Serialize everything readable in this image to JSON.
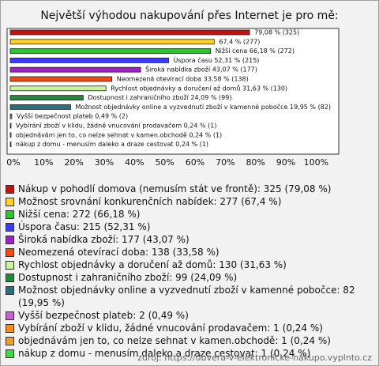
{
  "chart_data": {
    "type": "bar",
    "orientation": "horizontal",
    "title": "Největší výhodou nakupování přes Internet je pro mě:",
    "values": [
      79.08,
      67.4,
      66.18,
      52.31,
      43.07,
      33.58,
      31.63,
      24.09,
      19.95,
      0.49,
      0.24,
      0.24,
      0.24
    ],
    "value_labels": [
      "79,08 % (325)",
      "67,4 % (277)",
      "Nižší cena 66,18 % (272)",
      "Úspora času 52,31 % (215)",
      "Široká nabídka zboží 43,07 % (177)",
      "Neomezená otevírací doba 33,58 % (138)",
      "Rychlost objednávky a doručení až domů 31,63 % (130)",
      "Dostupnost i zahraničního zboží 24,09 % (99)",
      "Možnost objednávky online a vyzvednutí zboží v kamenné pobočce 19,95 % (82)",
      "Vyšší bezpečnost plateb 0,49 % (2)",
      "Vybírání zboží v klidu, žádné vnucování prodavačem 0,24 % (1)",
      "objednávám jen to, co nelze sehnat v kamen.obchodě 0,24 % (1)",
      "nákup z domu - menusím daleko a draze cestovat 0,24 % (1)"
    ],
    "colors": [
      "#c41010",
      "#ffd21f",
      "#2fc42f",
      "#3a3aff",
      "#a020c8",
      "#f24a10",
      "#c8f59a",
      "#1f8a3a",
      "#2a6e80",
      "#c860d0",
      "#ff8c10",
      "#e8a030",
      "#44d844"
    ],
    "legend": [
      "Nákup v pohodlí domova (nemusím stát ve frontě): 325 (79,08 %)",
      "Možnost srovnání konkurenčních nabídek: 277 (67,4 %)",
      "Nižší cena: 272 (66,18 %)",
      "Úspora času: 215 (52,31 %)",
      "Široká nabídka zboží: 177 (43,07 %)",
      "Neomezená otevírací doba: 138 (33,58 %)",
      "Rychlost objednávky a doručení až domů: 130 (31,63 %)",
      "Dostupnost i zahraničního zboží: 99 (24,09 %)",
      "Možnost objednávky online a vyzvednutí zboží v kamenné pobočce: 82 (19,95 %)",
      "Vyšší bezpečnost plateb: 2 (0,49 %)",
      "Vybírání zboží v klidu, žádné vnucování prodavačem: 1 (0,24 %)",
      "objednávám jen to, co nelze sehnat v kamen.obchodě: 1 (0,24 %)",
      "nákup z domu - menusím daleko a draze cestovat: 1 (0,24 %)"
    ],
    "xlim": [
      0,
      108
    ],
    "xticks": [
      {
        "value": 0,
        "label": "0%"
      },
      {
        "value": 10,
        "label": "10%"
      },
      {
        "value": 20,
        "label": "20%"
      },
      {
        "value": 30,
        "label": "30%"
      },
      {
        "value": 40,
        "label": "40%"
      },
      {
        "value": 50,
        "label": "50%"
      },
      {
        "value": 60,
        "label": "60%"
      },
      {
        "value": 70,
        "label": "70%"
      },
      {
        "value": 80,
        "label": "80%"
      },
      {
        "value": 90,
        "label": "90%"
      },
      {
        "value": 100,
        "label": "100%"
      }
    ],
    "source": "zdroj: https://duvera-v-elektronicke-nakupo.vyplnto.cz"
  }
}
